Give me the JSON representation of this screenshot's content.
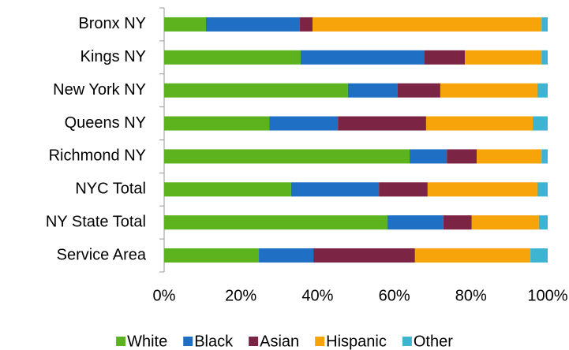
{
  "chart_data": {
    "type": "stacked-bar-horizontal",
    "categories": [
      "Bronx NY",
      "Kings NY",
      "New York NY",
      "Queens NY",
      "Richmond NY",
      "NYC Total",
      "NY State Total",
      "Service Area"
    ],
    "series": [
      {
        "name": "White",
        "color": "#5db31e",
        "values": [
          10.9,
          35.6,
          47.9,
          27.4,
          64,
          33.1,
          58.2,
          24.7
        ]
      },
      {
        "name": "Black",
        "color": "#1f6fc5",
        "values": [
          24.5,
          32.3,
          13,
          17.9,
          9.7,
          22.9,
          14.6,
          14.2
        ]
      },
      {
        "name": "Asian",
        "color": "#7b2444",
        "values": [
          3.3,
          10.5,
          11.1,
          23,
          7.8,
          12.7,
          7.4,
          26.5
        ]
      },
      {
        "name": "Hispanic",
        "color": "#f7a30a",
        "values": [
          59.7,
          20,
          25.3,
          27.8,
          16.9,
          28.6,
          17.5,
          30.1
        ]
      },
      {
        "name": "Other",
        "color": "#3db5d1",
        "values": [
          1.6,
          1.6,
          2.7,
          3.9,
          1.6,
          2.7,
          2.3,
          4.5
        ]
      }
    ],
    "xlim": [
      0,
      100
    ],
    "xticks": [
      {
        "value": 0,
        "label": "0%"
      },
      {
        "value": 20,
        "label": "20%"
      },
      {
        "value": 40,
        "label": "40%"
      },
      {
        "value": 60,
        "label": "60%"
      },
      {
        "value": 80,
        "label": "80%"
      },
      {
        "value": 100,
        "label": "100%"
      }
    ],
    "legend": "bottom"
  }
}
